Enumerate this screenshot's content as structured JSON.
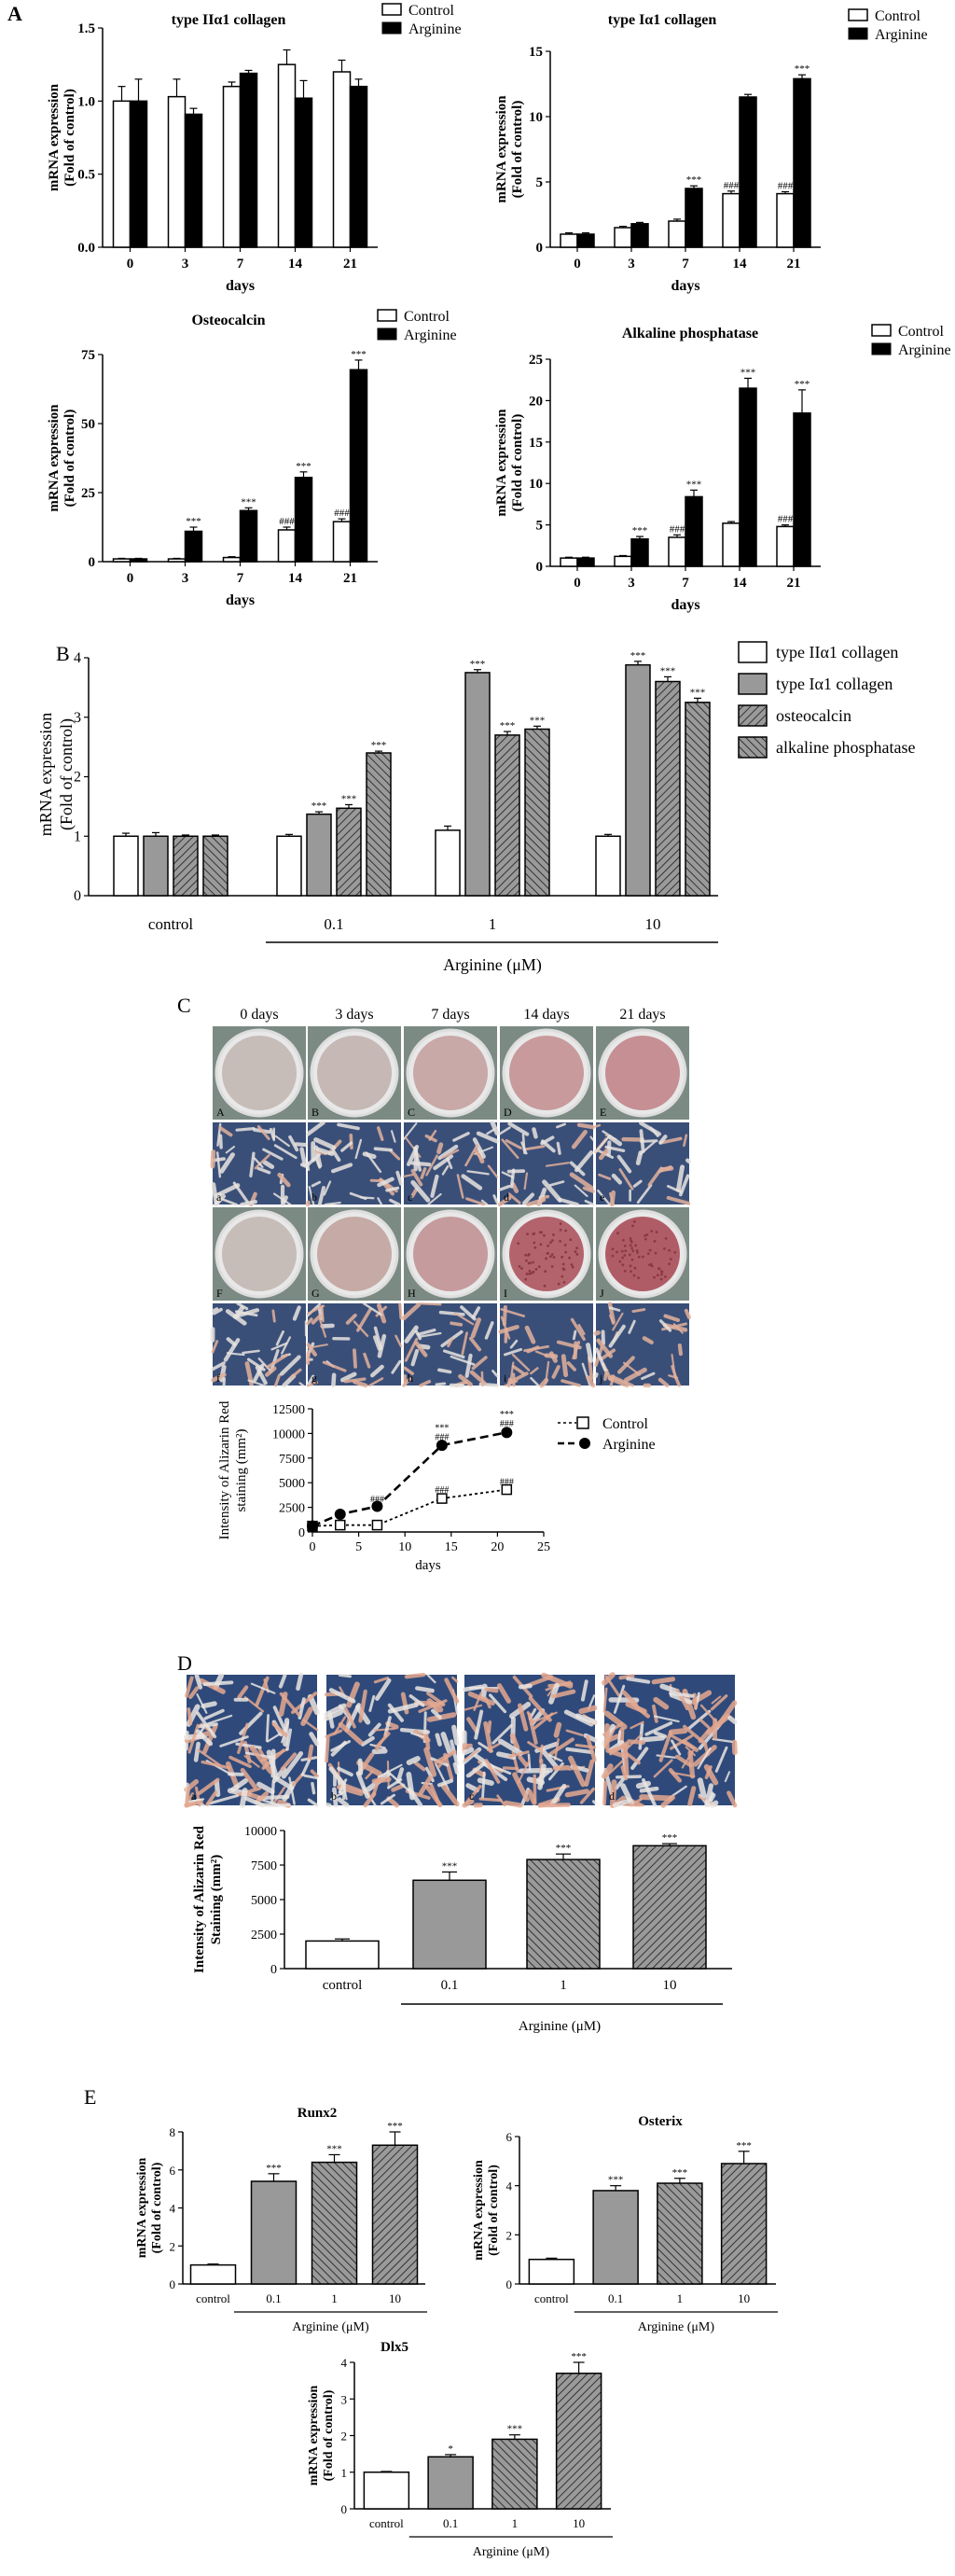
{
  "panels": {
    "A": {
      "letter": "A",
      "legend": {
        "control": "Control",
        "arginine": "Arginine"
      },
      "ylabel": [
        "mRNA expression",
        "(Fold of control)"
      ],
      "xlabel": "days"
    },
    "B": {
      "letter": "B"
    },
    "C": {
      "letter": "C",
      "day_labels": [
        "0 days",
        "3 days",
        "7 days",
        "14 days",
        "21 days"
      ],
      "row_dish_control": [
        "A",
        "B",
        "C",
        "D",
        "E"
      ],
      "row_micro_control": [
        "a",
        "b",
        "c",
        "d",
        "e"
      ],
      "row_dish_arginine": [
        "F",
        "G",
        "H",
        "I",
        "J"
      ],
      "row_micro_arginine": [
        "f",
        "g",
        "h",
        "i",
        "j"
      ]
    },
    "D": {
      "letter": "D",
      "micro_labels": [
        "a",
        "b",
        "c",
        "d"
      ]
    },
    "E": {
      "letter": "E"
    }
  },
  "colors": {
    "black": "#000000",
    "gray_fill": "#999999",
    "hatch": "#555555",
    "dish_control": "#c4b8b4",
    "dish_arginine_red": "#b5636b",
    "micro_blue": "#2a3f66",
    "micro_pink": "#d9a58f"
  },
  "chart_data": [
    {
      "id": "A1",
      "type": "bar",
      "title": "type IIα1 collagen",
      "categories": [
        "0",
        "3",
        "7",
        "14",
        "21"
      ],
      "series": [
        {
          "name": "Control",
          "values": [
            1.0,
            1.03,
            1.1,
            1.25,
            1.2
          ],
          "errors": [
            0.1,
            0.12,
            0.03,
            0.1,
            0.08
          ]
        },
        {
          "name": "Arginine",
          "values": [
            1.0,
            0.91,
            1.19,
            1.02,
            1.1
          ],
          "errors": [
            0.15,
            0.04,
            0.02,
            0.12,
            0.05
          ]
        }
      ],
      "ylim": [
        0,
        1.5
      ],
      "yticks": [
        "0.0",
        "0.5",
        "1.0",
        "1.5"
      ],
      "xlabel": "days",
      "ylabel": "mRNA expression (Fold of control)",
      "sig_control": [
        "",
        "",
        "",
        "",
        ""
      ],
      "sig_arginine": [
        "",
        "",
        "",
        "",
        ""
      ]
    },
    {
      "id": "A2",
      "type": "bar",
      "title": "type Iα1 collagen",
      "categories": [
        "0",
        "3",
        "7",
        "14",
        "21"
      ],
      "series": [
        {
          "name": "Control",
          "values": [
            1.0,
            1.5,
            2.0,
            4.1,
            4.1
          ],
          "errors": [
            0.1,
            0.1,
            0.15,
            0.2,
            0.15
          ]
        },
        {
          "name": "Arginine",
          "values": [
            1.0,
            1.8,
            4.5,
            11.5,
            12.9
          ],
          "errors": [
            0.1,
            0.1,
            0.2,
            0.2,
            0.3
          ]
        }
      ],
      "ylim": [
        0,
        15
      ],
      "yticks": [
        "0",
        "5",
        "10",
        "15"
      ],
      "xlabel": "days",
      "ylabel": "mRNA expression (Fold of control)",
      "sig_control": [
        "",
        "",
        "",
        "###",
        "###"
      ],
      "sig_arginine": [
        "",
        "",
        "***",
        "",
        "***"
      ]
    },
    {
      "id": "A3",
      "type": "bar",
      "title": "Osteocalcin",
      "categories": [
        "0",
        "3",
        "7",
        "14",
        "21"
      ],
      "series": [
        {
          "name": "Control",
          "values": [
            1.0,
            1.0,
            1.5,
            11.5,
            14.5
          ],
          "errors": [
            0.2,
            0.2,
            0.3,
            1.0,
            1.0
          ]
        },
        {
          "name": "Arginine",
          "values": [
            1.0,
            11.0,
            18.5,
            30.5,
            69.5
          ],
          "errors": [
            0.2,
            1.5,
            1.0,
            2.0,
            3.5
          ]
        }
      ],
      "ylim": [
        0,
        75
      ],
      "yticks": [
        "0",
        "25",
        "50",
        "75"
      ],
      "xlabel": "days",
      "ylabel": "mRNA expression (Fold of control)",
      "sig_control": [
        "",
        "",
        "",
        "###",
        "###"
      ],
      "sig_arginine": [
        "",
        "***",
        "***",
        "***",
        "***"
      ]
    },
    {
      "id": "A4",
      "type": "bar",
      "title": "Alkaline phosphatase",
      "categories": [
        "0",
        "3",
        "7",
        "14",
        "21"
      ],
      "series": [
        {
          "name": "Control",
          "values": [
            1.0,
            1.2,
            3.5,
            5.2,
            4.8
          ],
          "errors": [
            0.1,
            0.1,
            0.3,
            0.2,
            0.2
          ]
        },
        {
          "name": "Arginine",
          "values": [
            1.0,
            3.3,
            8.4,
            21.5,
            18.5
          ],
          "errors": [
            0.1,
            0.3,
            0.8,
            1.2,
            2.8
          ]
        }
      ],
      "ylim": [
        0,
        25
      ],
      "yticks": [
        "0",
        "5",
        "10",
        "15",
        "20",
        "25"
      ],
      "xlabel": "days",
      "ylabel": "mRNA expression (Fold of control)",
      "sig_control": [
        "",
        "",
        "###",
        "",
        "###"
      ],
      "sig_arginine": [
        "",
        "***",
        "***",
        "***",
        "***"
      ]
    },
    {
      "id": "B",
      "type": "bar",
      "groups": [
        "control",
        "0.1",
        "1",
        "10"
      ],
      "series": [
        {
          "name": "type IIα1 collagen",
          "values": [
            1.0,
            1.0,
            1.1,
            1.0
          ],
          "errors": [
            0.05,
            0.03,
            0.07,
            0.03
          ]
        },
        {
          "name": "type Iα1 collagen",
          "values": [
            1.0,
            1.37,
            3.75,
            3.88
          ],
          "errors": [
            0.06,
            0.04,
            0.05,
            0.06
          ]
        },
        {
          "name": "osteocalcin",
          "values": [
            1.0,
            1.47,
            2.7,
            3.6
          ],
          "errors": [
            0.02,
            0.06,
            0.06,
            0.08
          ]
        },
        {
          "name": "alkaline phosphatase",
          "values": [
            1.0,
            2.4,
            2.8,
            3.25
          ],
          "errors": [
            0.02,
            0.03,
            0.05,
            0.07
          ]
        }
      ],
      "ylim": [
        0,
        4
      ],
      "yticks": [
        "0",
        "1",
        "2",
        "3",
        "4"
      ],
      "ylabel": "mRNA expression (Fold of control)",
      "sig": [
        [
          "",
          "",
          "",
          ""
        ],
        [
          "",
          "***",
          "***",
          "***"
        ],
        [
          "",
          "***",
          "***",
          "***"
        ],
        [
          "",
          "***",
          "***",
          "***"
        ]
      ],
      "group_caption": "Arginine (μM)"
    },
    {
      "id": "C",
      "type": "line",
      "series": [
        {
          "name": "Control",
          "x": [
            0,
            3,
            7,
            14,
            21
          ],
          "y": [
            600,
            700,
            700,
            3400,
            4300
          ],
          "errors": [
            100,
            150,
            150,
            300,
            200
          ]
        },
        {
          "name": "Arginine",
          "x": [
            0,
            3,
            7,
            14,
            21
          ],
          "y": [
            600,
            1800,
            2600,
            8800,
            10100
          ],
          "errors": [
            100,
            100,
            150,
            250,
            300
          ]
        }
      ],
      "xlim": [
        0,
        25
      ],
      "ylim": [
        0,
        12500
      ],
      "xticks": [
        "0",
        "5",
        "10",
        "15",
        "20",
        "25"
      ],
      "yticks": [
        "0",
        "2500",
        "5000",
        "7500",
        "10000",
        "12500"
      ],
      "xlabel": "days",
      "ylabel": [
        "Intensity of Alizarin Red",
        "staining (mm²)"
      ],
      "sig_control": [
        "",
        "",
        "",
        "###",
        "###"
      ],
      "sig_arginine_top": [
        "",
        "",
        "",
        "***",
        "***"
      ],
      "sig_arginine_bottom": [
        "",
        "",
        "###",
        "###",
        "###"
      ]
    },
    {
      "id": "D",
      "type": "bar",
      "categories": [
        "control",
        "0.1",
        "1",
        "10"
      ],
      "values": [
        2000,
        6400,
        7900,
        8900
      ],
      "errors": [
        150,
        600,
        400,
        150
      ],
      "ylim": [
        0,
        10000
      ],
      "yticks": [
        "0",
        "2500",
        "5000",
        "7500",
        "10000"
      ],
      "ylabel": [
        "Intensity of Alizarin Red",
        "Staining (mm²)"
      ],
      "sig": [
        "",
        "***",
        "***",
        "***"
      ],
      "group_caption": "Arginine (μM)"
    },
    {
      "id": "E1",
      "type": "bar",
      "title": "Runx2",
      "categories": [
        "control",
        "0.1",
        "1",
        "10"
      ],
      "values": [
        1.0,
        5.4,
        6.4,
        7.3
      ],
      "errors": [
        0.05,
        0.4,
        0.4,
        0.7
      ],
      "ylim": [
        0,
        8
      ],
      "yticks": [
        "0",
        "2",
        "4",
        "6",
        "8"
      ],
      "ylabel": [
        "mRNA expression",
        "(Fold of control)"
      ],
      "sig": [
        "",
        "***",
        "***",
        "***"
      ],
      "group_caption": "Arginine (μM)"
    },
    {
      "id": "E2",
      "type": "bar",
      "title": "Osterix",
      "categories": [
        "control",
        "0.1",
        "1",
        "10"
      ],
      "values": [
        1.0,
        3.8,
        4.1,
        4.9
      ],
      "errors": [
        0.05,
        0.2,
        0.2,
        0.5
      ],
      "ylim": [
        0,
        6
      ],
      "yticks": [
        "0",
        "2",
        "4",
        "6"
      ],
      "ylabel": [
        "mRNA expression",
        "(Fold of control)"
      ],
      "sig": [
        "",
        "***",
        "***",
        "***"
      ],
      "group_caption": "Arginine (μM)"
    },
    {
      "id": "E3",
      "type": "bar",
      "title": "Dlx5",
      "categories": [
        "control",
        "0.1",
        "1",
        "10"
      ],
      "values": [
        1.0,
        1.42,
        1.9,
        3.7
      ],
      "errors": [
        0.02,
        0.06,
        0.12,
        0.3
      ],
      "ylim": [
        0,
        4
      ],
      "yticks": [
        "0",
        "1",
        "2",
        "3",
        "4"
      ],
      "ylabel": [
        "mRNA expression",
        "(Fold of control)"
      ],
      "sig": [
        "",
        "*",
        "***",
        "***"
      ],
      "group_caption": "Arginine (μM)"
    }
  ]
}
